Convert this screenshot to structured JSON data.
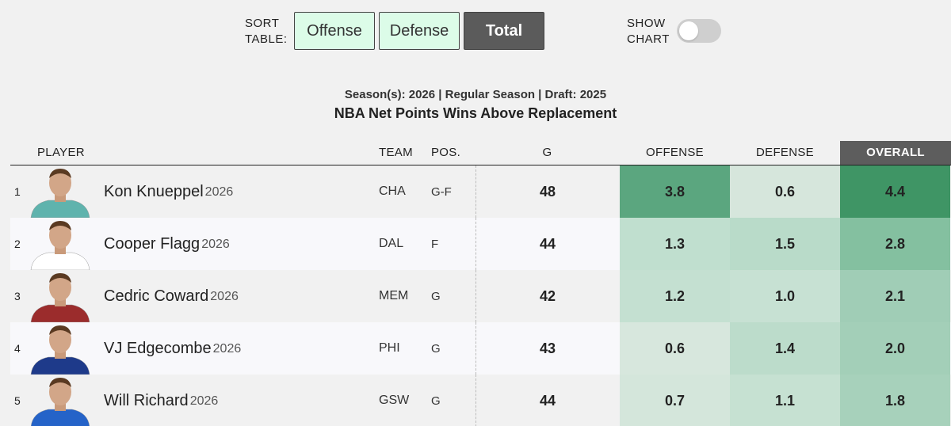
{
  "controls": {
    "sort_label_line1": "SORT",
    "sort_label_line2": "TABLE:",
    "buttons": [
      {
        "label": "Offense",
        "active": false
      },
      {
        "label": "Defense",
        "active": false
      },
      {
        "label": "Total",
        "active": true
      }
    ],
    "chart_label_line1": "SHOW",
    "chart_label_line2": "CHART",
    "chart_toggle_on": false
  },
  "header": {
    "subtitle": "Season(s): 2026 | Regular Season | Draft: 2025",
    "title": "NBA Net Points Wins Above Replacement"
  },
  "table": {
    "columns": {
      "player": "PLAYER",
      "team": "TEAM",
      "pos": "POS.",
      "games": "G",
      "offense": "OFFENSE",
      "defense": "DEFENSE",
      "overall": "OVERALL"
    },
    "rows": [
      {
        "rank": "1",
        "name": "Kon Knueppel",
        "year": "2026",
        "team": "CHA",
        "pos": "G-F",
        "games": "48",
        "offense": "3.8",
        "defense": "0.6",
        "overall": "4.4",
        "off_color": "#5ba67f",
        "def_color": "#d6e6dc",
        "ovr_color": "#3f9565",
        "jersey": "#5fb3ad"
      },
      {
        "rank": "2",
        "name": "Cooper Flagg",
        "year": "2026",
        "team": "DAL",
        "pos": "F",
        "games": "44",
        "offense": "1.3",
        "defense": "1.5",
        "overall": "2.8",
        "off_color": "#c0dfcf",
        "def_color": "#b9dbc9",
        "ovr_color": "#84c0a0",
        "jersey": "#ffffff"
      },
      {
        "rank": "3",
        "name": "Cedric Coward",
        "year": "2026",
        "team": "MEM",
        "pos": "G",
        "games": "42",
        "offense": "1.2",
        "defense": "1.0",
        "overall": "2.1",
        "off_color": "#c4e0d1",
        "def_color": "#c7e1d3",
        "ovr_color": "#a0cdb6",
        "jersey": "#9b2c2c"
      },
      {
        "rank": "4",
        "name": "VJ Edgecombe",
        "year": "2026",
        "team": "PHI",
        "pos": "G",
        "games": "43",
        "offense": "0.6",
        "defense": "1.4",
        "overall": "2.0",
        "off_color": "#d7e7dd",
        "def_color": "#bcdccb",
        "ovr_color": "#a3cfb8",
        "jersey": "#1e3a8a"
      },
      {
        "rank": "5",
        "name": "Will Richard",
        "year": "2026",
        "team": "GSW",
        "pos": "G",
        "games": "44",
        "offense": "0.7",
        "defense": "1.1",
        "overall": "1.8",
        "off_color": "#d4e6db",
        "def_color": "#c6e1d2",
        "ovr_color": "#a7d1bb",
        "jersey": "#2563c8"
      }
    ]
  }
}
